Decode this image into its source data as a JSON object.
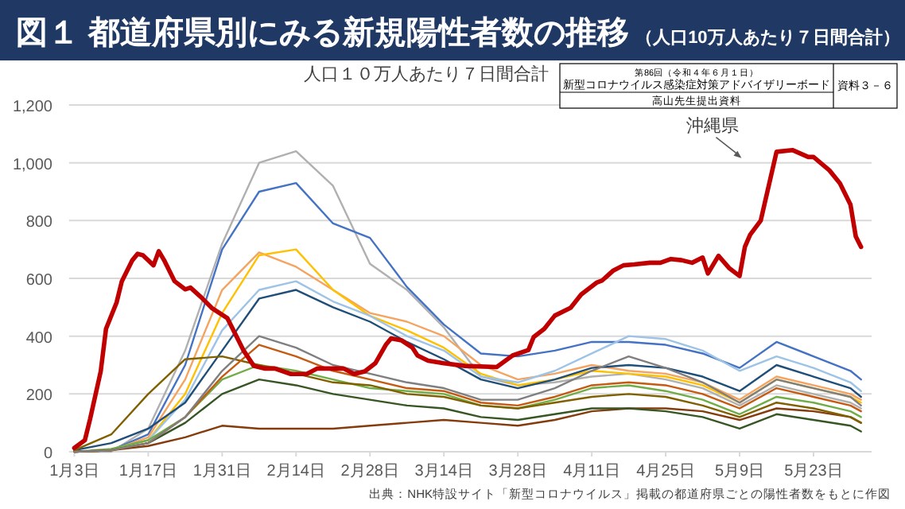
{
  "chart_data": {
    "type": "line",
    "title": "図１ 都道府県別にみる新規陽性者数の推移",
    "subtitle": "（人口10万人あたり７日間合計）",
    "ylabel": "人口１０万人あたり７日間合計",
    "annotations": [
      "第86回（令和４年６月１日）",
      "新型コロナウイルス感染症対策アドバイザリーボード",
      "高山先生提出資料",
      "資料３－６",
      "出典：NHK特設サイト「新型コロナウイルス」掲載の都道府県ごとの陽性者数をもとに作図"
    ],
    "x": [
      "--01-03",
      "--01-10",
      "--01-17",
      "--01-24",
      "--01-31",
      "--02-07",
      "--02-14",
      "--02-21",
      "--02-28",
      "--03-07",
      "--03-14",
      "--03-21",
      "--03-28",
      "--04-04",
      "--04-11",
      "--04-18",
      "--04-25",
      "--05-02",
      "--05-09",
      "--05-16",
      "--05-23",
      "--05-30",
      "--06-01"
    ],
    "series": [
      {
        "color": "#b0b0b0",
        "values": [
          0,
          0,
          80,
          350,
          720,
          1000,
          1040,
          920,
          650,
          560,
          430,
          260,
          230,
          240,
          260,
          270,
          250,
          220,
          160,
          230,
          200,
          170,
          150
        ]
      },
      {
        "color": "#4472c4",
        "values": [
          0,
          5,
          60,
          300,
          700,
          900,
          930,
          790,
          740,
          570,
          440,
          340,
          330,
          350,
          380,
          380,
          370,
          340,
          290,
          380,
          330,
          280,
          250
        ]
      },
      {
        "color": "#f4a460",
        "values": [
          0,
          5,
          50,
          250,
          560,
          690,
          640,
          560,
          480,
          450,
          400,
          300,
          250,
          270,
          300,
          280,
          270,
          240,
          180,
          260,
          230,
          200,
          180
        ]
      },
      {
        "color": "#ffc000",
        "values": [
          0,
          5,
          40,
          200,
          480,
          680,
          700,
          560,
          470,
          420,
          360,
          270,
          230,
          250,
          280,
          270,
          260,
          230,
          170,
          250,
          220,
          190,
          170
        ]
      },
      {
        "color": "#9dc3e6",
        "values": [
          0,
          5,
          40,
          180,
          420,
          560,
          590,
          520,
          470,
          400,
          350,
          260,
          240,
          280,
          340,
          400,
          390,
          350,
          280,
          330,
          290,
          240,
          210
        ]
      },
      {
        "color": "#1f4e79",
        "values": [
          5,
          30,
          80,
          170,
          350,
          530,
          560,
          500,
          450,
          380,
          320,
          250,
          220,
          250,
          290,
          300,
          290,
          260,
          210,
          300,
          260,
          220,
          190
        ]
      },
      {
        "color": "#70ad47",
        "values": [
          0,
          10,
          40,
          120,
          250,
          300,
          280,
          250,
          220,
          210,
          200,
          160,
          150,
          180,
          220,
          230,
          210,
          180,
          130,
          190,
          170,
          140,
          120
        ]
      },
      {
        "color": "#843c0c",
        "values": [
          0,
          5,
          20,
          50,
          90,
          80,
          80,
          80,
          90,
          100,
          110,
          100,
          90,
          110,
          140,
          150,
          150,
          140,
          110,
          150,
          140,
          120,
          100
        ]
      },
      {
        "color": "#806000",
        "values": [
          5,
          60,
          200,
          320,
          330,
          300,
          270,
          240,
          230,
          200,
          190,
          160,
          150,
          170,
          190,
          200,
          190,
          160,
          120,
          170,
          150,
          120,
          100
        ]
      },
      {
        "color": "#375623",
        "values": [
          0,
          5,
          30,
          100,
          200,
          250,
          230,
          200,
          180,
          160,
          150,
          120,
          110,
          130,
          150,
          150,
          140,
          120,
          80,
          130,
          110,
          90,
          70
        ]
      },
      {
        "color": "#c55a11",
        "values": [
          0,
          5,
          30,
          120,
          260,
          370,
          330,
          280,
          250,
          220,
          210,
          170,
          160,
          190,
          230,
          240,
          230,
          200,
          150,
          220,
          190,
          160,
          140
        ]
      },
      {
        "color": "#7f7f7f",
        "values": [
          0,
          5,
          30,
          120,
          280,
          400,
          360,
          300,
          270,
          240,
          220,
          180,
          180,
          220,
          280,
          330,
          290,
          240,
          170,
          250,
          220,
          190,
          160
        ]
      },
      {
        "name": "沖縄県",
        "color": "#c00000",
        "x": [
          "--01-03",
          "--01-05",
          "--01-06",
          "--01-08",
          "--01-09",
          "--01-11",
          "--01-12",
          "--01-14",
          "--01-15",
          "--01-16",
          "--01-18",
          "--01-19",
          "--01-20",
          "--01-22",
          "--01-24",
          "--01-25",
          "--01-27",
          "--01-29",
          "--02-01",
          "--02-02",
          "--02-04",
          "--02-06",
          "--02-08",
          "--02-10",
          "--02-13",
          "--02-16",
          "--02-18",
          "--02-20",
          "--02-23",
          "--02-25",
          "--02-27",
          "--03-01",
          "--03-03",
          "--03-04",
          "--03-06",
          "--03-08",
          "--03-09",
          "--03-11",
          "--03-14",
          "--03-18",
          "--03-24",
          "--03-27",
          "--03-30",
          "--03-31",
          "--04-02",
          "--04-04",
          "--04-07",
          "--04-09",
          "--04-12",
          "--04-13",
          "--04-15",
          "--04-17",
          "--04-19",
          "--04-22",
          "--04-24",
          "--04-26",
          "--04-28",
          "--04-30",
          "--05-02",
          "--05-03",
          "--05-05",
          "--05-07",
          "--05-09",
          "--05-10",
          "--05-11",
          "--05-13",
          "--05-16",
          "--05-19",
          "--05-22",
          "--05-23",
          "--05-26",
          "--05-28",
          "--05-30",
          "--05-31",
          "--06-01"
        ],
        "values": [
          13,
          40,
          114,
          278,
          425,
          516,
          590,
          663,
          685,
          680,
          645,
          694,
          663,
          590,
          562,
          568,
          535,
          498,
          462,
          425,
          352,
          297,
          288,
          288,
          269,
          269,
          288,
          288,
          288,
          269,
          278,
          306,
          370,
          392,
          385,
          361,
          333,
          315,
          306,
          297,
          293,
          333,
          352,
          397,
          425,
          471,
          498,
          544,
          586,
          593,
          626,
          645,
          648,
          654,
          654,
          667,
          663,
          654,
          672,
          617,
          678,
          636,
          608,
          709,
          751,
          800,
          1038,
          1044,
          1020,
          1020,
          974,
          929,
          855,
          745,
          709
        ]
      }
    ],
    "xlim": [
      "--01-02",
      "--06-03"
    ],
    "xticks": [
      {
        "value": "--01-03",
        "label": "1月3日"
      },
      {
        "value": "--01-17",
        "label": "1月17日"
      },
      {
        "value": "--01-31",
        "label": "1月31日"
      },
      {
        "value": "--02-14",
        "label": "2月14日"
      },
      {
        "value": "--02-28",
        "label": "2月28日"
      },
      {
        "value": "--03-14",
        "label": "3月14日"
      },
      {
        "value": "--03-28",
        "label": "3月28日"
      },
      {
        "value": "--04-11",
        "label": "4月11日"
      },
      {
        "value": "--04-25",
        "label": "4月25日"
      },
      {
        "value": "--05-09",
        "label": "5月9日"
      },
      {
        "value": "--05-23",
        "label": "5月23日"
      }
    ],
    "ylim": [
      0,
      1200
    ],
    "yticks": [
      0,
      200,
      400,
      600,
      800,
      {
        "value": 1000,
        "label": "1,000"
      },
      {
        "value": 1200,
        "label": "1,200"
      }
    ],
    "grid": "y"
  }
}
